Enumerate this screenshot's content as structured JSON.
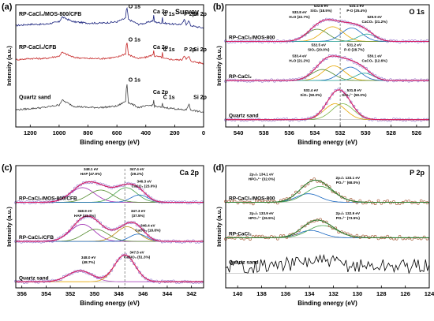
{
  "figure": {
    "panel_letters": [
      "(a)",
      "(b)",
      "(c)",
      "(d)"
    ]
  },
  "chart_data": [
    {
      "type": "line",
      "panel": "(a)",
      "title": "Survey",
      "xlabel": "Binding energy (eV)",
      "ylabel": "Intensity (a.u.)",
      "xlim": [
        1300,
        0
      ],
      "ylim": [
        0,
        100
      ],
      "xticks": [
        1200,
        1000,
        800,
        600,
        400,
        200,
        0
      ],
      "series": [
        {
          "name": "RP-CaCl₂/MOS-800/CFB",
          "color": "#1a237e",
          "baseline": 80,
          "x": [
            1300,
            1200,
            1100,
            1000,
            980,
            900,
            800,
            700,
            600,
            540,
            532,
            520,
            450,
            400,
            350,
            347,
            340,
            290,
            285,
            280,
            200,
            150,
            133,
            120,
            102,
            90,
            50,
            0
          ],
          "y": [
            83,
            84,
            84,
            86,
            90,
            86,
            85,
            85,
            86,
            89,
            99,
            88,
            84,
            85,
            87,
            93,
            86,
            85,
            90,
            85,
            84,
            84,
            88,
            84,
            87,
            83,
            82,
            81
          ]
        },
        {
          "name": "RP-CaCl₂/CFB",
          "color": "#c62828",
          "baseline": 52,
          "x": [
            1300,
            1200,
            1100,
            1000,
            980,
            900,
            800,
            700,
            600,
            540,
            532,
            520,
            450,
            400,
            350,
            347,
            340,
            290,
            285,
            280,
            200,
            150,
            133,
            120,
            102,
            90,
            50,
            0
          ],
          "y": [
            55,
            56,
            56,
            58,
            61,
            57,
            56,
            56,
            57,
            60,
            71,
            59,
            56,
            57,
            59,
            65,
            58,
            57,
            61,
            56,
            55,
            55,
            59,
            55,
            58,
            54,
            53,
            52
          ]
        },
        {
          "name": "Quartz sand",
          "color": "#424242",
          "baseline": 12,
          "x": [
            1300,
            1200,
            1100,
            1000,
            980,
            900,
            800,
            700,
            600,
            540,
            532,
            520,
            450,
            400,
            350,
            347,
            340,
            290,
            285,
            280,
            200,
            150,
            120,
            102,
            90,
            50,
            0
          ],
          "y": [
            14,
            15,
            16,
            18,
            22,
            17,
            16,
            16,
            17,
            21,
            38,
            20,
            16,
            17,
            18,
            24,
            17,
            16,
            19,
            16,
            15,
            14,
            14,
            19,
            14,
            13,
            12
          ]
        }
      ],
      "annotations": [
        {
          "text": "O 1s",
          "x": 520,
          "y": 97
        },
        {
          "text": "Ca 2p",
          "x": 350,
          "y": 93
        },
        {
          "text": "C 1s",
          "x": 280,
          "y": 91
        },
        {
          "text": "P 2p",
          "x": 135,
          "y": 91
        },
        {
          "text": "Si 2p",
          "x": 70,
          "y": 91
        },
        {
          "text": "O 1s",
          "x": 520,
          "y": 70
        },
        {
          "text": "Ca 2p",
          "x": 350,
          "y": 64
        },
        {
          "text": "C 1s",
          "x": 280,
          "y": 62
        },
        {
          "text": "P 2p",
          "x": 135,
          "y": 62
        },
        {
          "text": "Si 2p",
          "x": 70,
          "y": 62
        },
        {
          "text": "O 1s",
          "x": 520,
          "y": 37
        },
        {
          "text": "Ca 2p",
          "x": 350,
          "y": 27
        },
        {
          "text": "C 1s",
          "x": 280,
          "y": 23
        },
        {
          "text": "Si 2p",
          "x": 70,
          "y": 23
        }
      ],
      "legend_labels": [
        {
          "text": "RP-CaCl₂/MOS-800/CFB",
          "y": 91
        },
        {
          "text": "RP-CaCl₂/CFB",
          "y": 64
        },
        {
          "text": "Quartz sand",
          "y": 23
        }
      ]
    },
    {
      "type": "line",
      "panel": "(b)",
      "title": "O 1s",
      "xlabel": "Binding energy (eV)",
      "ylabel": "Intensity (a.u.)",
      "xlim": [
        541,
        525
      ],
      "ylim": [
        0,
        100
      ],
      "xticks": [
        540,
        538,
        536,
        534,
        532,
        530,
        528,
        526
      ],
      "reference_line_x": 532.0,
      "envelope_color": "#d81b60",
      "data_color": "#9575cd",
      "components": [
        {
          "sample": 0,
          "center": 532.6,
          "height": 12,
          "width": 0.85,
          "color": "#e6a700"
        },
        {
          "sample": 0,
          "center": 533.8,
          "height": 10,
          "width": 0.85,
          "color": "#558b2f"
        },
        {
          "sample": 0,
          "center": 531.1,
          "height": 11,
          "width": 0.8,
          "color": "#1565c0"
        },
        {
          "sample": 0,
          "center": 529.9,
          "height": 6,
          "width": 0.7,
          "color": "#26a69a"
        },
        {
          "sample": 1,
          "center": 532.5,
          "height": 12,
          "width": 0.85,
          "color": "#e6a700"
        },
        {
          "sample": 1,
          "center": 533.4,
          "height": 9,
          "width": 0.85,
          "color": "#558b2f"
        },
        {
          "sample": 1,
          "center": 531.2,
          "height": 11,
          "width": 0.8,
          "color": "#1565c0"
        },
        {
          "sample": 1,
          "center": 530.1,
          "height": 6,
          "width": 0.7,
          "color": "#26a69a"
        },
        {
          "sample": 2,
          "center": 532.4,
          "height": 13,
          "width": 0.85,
          "color": "#e6a700"
        },
        {
          "sample": 2,
          "center": 531.8,
          "height": 13,
          "width": 0.85,
          "color": "#7cb342"
        }
      ],
      "samples": [
        {
          "name": "RP-CaCl₂/MOS-800",
          "baseline": 70
        },
        {
          "name": "RP-CaCl₂",
          "baseline": 38
        },
        {
          "name": "Quartz sand",
          "baseline": 6
        }
      ],
      "annotations": [
        {
          "lines": [
            "532.6 eV",
            "SiO₂ (18.5%)"
          ],
          "x": 533.5,
          "y": 98
        },
        {
          "lines": [
            "533.8 eV",
            "H₂O (22.7%)"
          ],
          "x": 535.2,
          "y": 93
        },
        {
          "lines": [
            "531.1 eV",
            "P-O (25.4%)"
          ],
          "x": 530.7,
          "y": 98
        },
        {
          "lines": [
            "529.9 eV",
            "CaCO₃ (21.2%)"
          ],
          "x": 529.3,
          "y": 89
        },
        {
          "lines": [
            "532.5 eV",
            "SiO₂ (20.0%)"
          ],
          "x": 533.7,
          "y": 66
        },
        {
          "lines": [
            "533.4 eV",
            "H₂O (21.2%)"
          ],
          "x": 535.2,
          "y": 57
        },
        {
          "lines": [
            "531.2 eV",
            "P-O (28.7%)"
          ],
          "x": 530.9,
          "y": 66
        },
        {
          "lines": [
            "530.1 eV",
            "CaCO₃ (12.6%)"
          ],
          "x": 529.3,
          "y": 57
        },
        {
          "lines": [
            "532.4 eV",
            "SiO₂ (50.0%)"
          ],
          "x": 534.3,
          "y": 29
        },
        {
          "lines": [
            "531.8 eV",
            "SiO₃²⁻ (50.0%)"
          ],
          "x": 530.9,
          "y": 29
        }
      ]
    },
    {
      "type": "line",
      "panel": "(c)",
      "title": "Ca 2p",
      "xlabel": "Binding energy (eV)",
      "ylabel": "Intensity (a.u.)",
      "xlim": [
        356.5,
        341
      ],
      "ylim": [
        0,
        100
      ],
      "xticks": [
        356,
        354,
        352,
        350,
        348,
        346,
        344,
        342
      ],
      "reference_line_x": 347.5,
      "envelope_color": "#d81b60",
      "data_color": "#9575cd",
      "components": [
        {
          "sample": 0,
          "center": 351.0,
          "height": 12,
          "width": 1.0,
          "color": "#9c27b0"
        },
        {
          "sample": 0,
          "center": 349.5,
          "height": 10,
          "width": 1.0,
          "color": "#558b2f"
        },
        {
          "sample": 0,
          "center": 347.4,
          "height": 12,
          "width": 0.9,
          "color": "#43a047"
        },
        {
          "sample": 0,
          "center": 346.3,
          "height": 6,
          "width": 0.7,
          "color": "#1565c0"
        },
        {
          "sample": 1,
          "center": 351.0,
          "height": 14,
          "width": 1.0,
          "color": "#9c27b0"
        },
        {
          "sample": 1,
          "center": 349.9,
          "height": 10,
          "width": 1.0,
          "color": "#558b2f"
        },
        {
          "sample": 1,
          "center": 347.3,
          "height": 12,
          "width": 0.9,
          "color": "#b8860b"
        },
        {
          "sample": 1,
          "center": 346.4,
          "height": 6,
          "width": 0.7,
          "color": "#1565c0"
        },
        {
          "sample": 2,
          "center": 351.2,
          "height": 9,
          "width": 1.0,
          "color": "#ab47bc"
        },
        {
          "sample": 2,
          "center": 347.5,
          "height": 22,
          "width": 0.85,
          "color": "#e6a700"
        }
      ],
      "samples": [
        {
          "name": "RP-CaCl₂/MOS-800/CFB",
          "baseline": 70
        },
        {
          "name": "RP-CaCl₂/CFB",
          "baseline": 38
        },
        {
          "name": "Quartz sand",
          "baseline": 5
        }
      ],
      "annotations": [
        {
          "lines": [
            "348.1 eV",
            "HAP (47.9%)"
          ],
          "x": 350.3,
          "y": 96
        },
        {
          "lines": [
            "347.4 eV",
            "(29.2%)"
          ],
          "x": 346.5,
          "y": 96
        },
        {
          "lines": [
            "346.3 eV",
            "CaCO₃ (23.0%)"
          ],
          "x": 345.9,
          "y": 86
        },
        {
          "lines": [
            "348.9 eV",
            "HAP (43.7%)"
          ],
          "x": 350.8,
          "y": 62
        },
        {
          "lines": [
            "347.3 eV",
            "(37.5%)"
          ],
          "x": 346.4,
          "y": 62
        },
        {
          "lines": [
            "346.4 eV",
            "CaCO₃ (18.8%)"
          ],
          "x": 345.6,
          "y": 50
        },
        {
          "lines": [
            "348.0 eV",
            "(48.7%)"
          ],
          "x": 350.5,
          "y": 24
        },
        {
          "lines": [
            "347.5 eV",
            "CaSiO₃ (51.3%)"
          ],
          "x": 346.5,
          "y": 28
        }
      ]
    },
    {
      "type": "line",
      "panel": "(d)",
      "title": "P 2p",
      "xlabel": "Binding energy (eV)",
      "ylabel": "Intensity (a.u.)",
      "xlim": [
        141,
        124
      ],
      "ylim": [
        0,
        100
      ],
      "xticks": [
        140,
        138,
        136,
        134,
        132,
        130,
        128,
        126,
        124
      ],
      "envelope_color": "#2e7d32",
      "data_color": "#a0522d",
      "components": [
        {
          "sample": 0,
          "center": 134.1,
          "height": 7,
          "width": 1.0,
          "color": "#1565c0"
        },
        {
          "sample": 0,
          "center": 133.1,
          "height": 13,
          "width": 1.2,
          "color": "#43a047"
        },
        {
          "sample": 1,
          "center": 133.9,
          "height": 6,
          "width": 1.0,
          "color": "#1565c0"
        },
        {
          "sample": 1,
          "center": 132.9,
          "height": 10,
          "width": 1.2,
          "color": "#43a047"
        }
      ],
      "samples": [
        {
          "name": "RP-CaCl₂/MOS-800",
          "baseline": 70,
          "fitted": true
        },
        {
          "name": "RP-CaCl₂",
          "baseline": 41,
          "fitted": true
        },
        {
          "name": "Quartz sand",
          "baseline": 12,
          "fitted": false
        }
      ],
      "annotations": [
        {
          "lines": [
            "2p₃/₂ 134.1 eV",
            "HPO₄²⁻ (32.0%)"
          ],
          "x": 138.0,
          "y": 92
        },
        {
          "lines": [
            "2p₃/₂ 133.1 eV",
            "PO₄³⁻ (68.0%)"
          ],
          "x": 130.8,
          "y": 89
        },
        {
          "lines": [
            "2p₃/₂ 133.9 eV",
            "HPO₄²⁻ (26.5%)"
          ],
          "x": 138.0,
          "y": 60
        },
        {
          "lines": [
            "2p₃/₂ 132.9 eV",
            "PO₄³⁻ (73.5%)"
          ],
          "x": 130.8,
          "y": 60
        }
      ]
    }
  ]
}
